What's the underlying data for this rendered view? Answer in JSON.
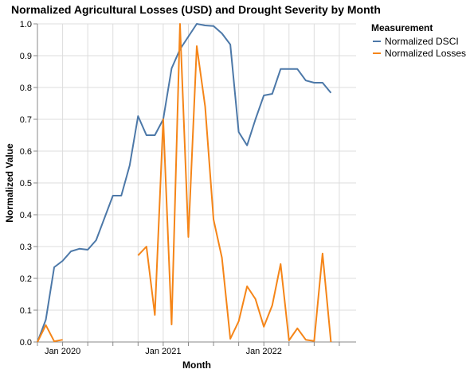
{
  "chart_data": {
    "type": "line",
    "title": "Normalized Agricultural Losses (USD) and Drought Severity by Month",
    "xlabel": "Month",
    "ylabel": "Normalized Value",
    "ylim": [
      0,
      1
    ],
    "yticks": [
      "0.0",
      "0.1",
      "0.2",
      "0.3",
      "0.4",
      "0.5",
      "0.6",
      "0.7",
      "0.8",
      "0.9",
      "1.0"
    ],
    "x_domain": [
      "2019-10",
      "2022-12"
    ],
    "x_tick_labels": [
      {
        "date": "2020-01",
        "label": "Jan 2020"
      },
      {
        "date": "2021-01",
        "label": "Jan 2021"
      },
      {
        "date": "2022-01",
        "label": "Jan 2022"
      }
    ],
    "grid": true,
    "legend": {
      "title": "Measurement",
      "placement": "right",
      "items": [
        {
          "name": "Normalized DSCI",
          "color": "#4c78a8"
        },
        {
          "name": "Normalized Losses",
          "color": "#f58518"
        }
      ]
    },
    "series": [
      {
        "name": "Normalized DSCI",
        "color": "#4c78a8",
        "points": [
          [
            "2019-10",
            0.0
          ],
          [
            "2019-11",
            0.07
          ],
          [
            "2019-12",
            0.235
          ],
          [
            "2020-01",
            0.255
          ],
          [
            "2020-02",
            0.285
          ],
          [
            "2020-03",
            0.293
          ],
          [
            "2020-04",
            0.29
          ],
          [
            "2020-05",
            0.32
          ],
          [
            "2020-06",
            0.39
          ],
          [
            "2020-07",
            0.46
          ],
          [
            "2020-08",
            0.46
          ],
          [
            "2020-09",
            0.555
          ],
          [
            "2020-10",
            0.71
          ],
          [
            "2020-11",
            0.65
          ],
          [
            "2020-12",
            0.65
          ],
          [
            "2021-01",
            0.7
          ],
          [
            "2021-02",
            0.86
          ],
          [
            "2021-03",
            0.92
          ],
          [
            "2021-04",
            0.96
          ],
          [
            "2021-05",
            1.0
          ],
          [
            "2021-06",
            0.995
          ],
          [
            "2021-07",
            0.993
          ],
          [
            "2021-08",
            0.97
          ],
          [
            "2021-09",
            0.935
          ],
          [
            "2021-10",
            0.66
          ],
          [
            "2021-11",
            0.618
          ],
          [
            "2021-12",
            0.7
          ],
          [
            "2022-01",
            0.775
          ],
          [
            "2022-02",
            0.78
          ],
          [
            "2022-03",
            0.858
          ],
          [
            "2022-04",
            0.858
          ],
          [
            "2022-05",
            0.858
          ],
          [
            "2022-06",
            0.822
          ],
          [
            "2022-07",
            0.815
          ],
          [
            "2022-08",
            0.815
          ],
          [
            "2022-09",
            0.783
          ]
        ]
      },
      {
        "name": "Normalized Losses",
        "color": "#f58518",
        "segments": [
          [
            [
              "2019-10",
              0.0
            ],
            [
              "2019-11",
              0.053
            ],
            [
              "2019-12",
              0.002
            ],
            [
              "2020-01",
              0.007
            ]
          ],
          [
            [
              "2020-10",
              0.272
            ],
            [
              "2020-11",
              0.3
            ],
            [
              "2020-12",
              0.085
            ],
            [
              "2021-01",
              0.7
            ],
            [
              "2021-02",
              0.055
            ],
            [
              "2021-03",
              1.0
            ],
            [
              "2021-04",
              0.33
            ],
            [
              "2021-05",
              0.93
            ],
            [
              "2021-06",
              0.74
            ],
            [
              "2021-07",
              0.385
            ],
            [
              "2021-08",
              0.265
            ],
            [
              "2021-09",
              0.01
            ],
            [
              "2021-10",
              0.065
            ],
            [
              "2021-11",
              0.175
            ],
            [
              "2021-12",
              0.135
            ],
            [
              "2022-01",
              0.048
            ],
            [
              "2022-02",
              0.115
            ],
            [
              "2022-03",
              0.245
            ],
            [
              "2022-04",
              0.005
            ],
            [
              "2022-05",
              0.043
            ],
            [
              "2022-06",
              0.007
            ],
            [
              "2022-07",
              0.003
            ],
            [
              "2022-08",
              0.278
            ],
            [
              "2022-09",
              0.0
            ]
          ]
        ]
      }
    ]
  }
}
